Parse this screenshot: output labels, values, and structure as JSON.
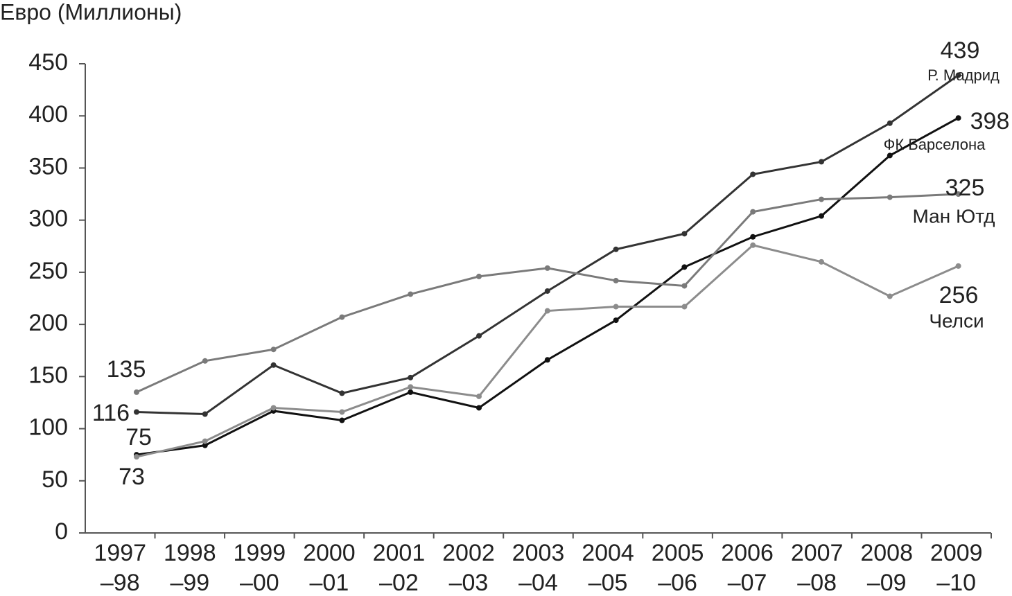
{
  "chart_data": {
    "type": "line",
    "y_label": "Евро (Миллионы)",
    "categories": [
      [
        "1997",
        "–98"
      ],
      [
        "1998",
        "–99"
      ],
      [
        "1999",
        "–00"
      ],
      [
        "2000",
        "–01"
      ],
      [
        "2001",
        "–02"
      ],
      [
        "2002",
        "–03"
      ],
      [
        "2003",
        "–04"
      ],
      [
        "2004",
        "–05"
      ],
      [
        "2005",
        "–06"
      ],
      [
        "2006",
        "–07"
      ],
      [
        "2007",
        "–08"
      ],
      [
        "2008",
        "–09"
      ],
      [
        "2009",
        "–10"
      ]
    ],
    "series": [
      {
        "name": "Р. Мадрид",
        "color": "#333333",
        "values": [
          116,
          114,
          161,
          134,
          149,
          189,
          232,
          272,
          287,
          344,
          356,
          393,
          439
        ]
      },
      {
        "name": "ФК Барселона",
        "color": "#111111",
        "values": [
          75,
          84,
          117,
          108,
          135,
          120,
          166,
          204,
          255,
          284,
          304,
          362,
          398
        ]
      },
      {
        "name": "Ман Ютд",
        "color": "#7a7a7a",
        "values": [
          135,
          165,
          176,
          207,
          229,
          246,
          254,
          242,
          237,
          308,
          320,
          322,
          325
        ]
      },
      {
        "name": "Челси",
        "color": "#8c8c8c",
        "values": [
          73,
          88,
          120,
          116,
          140,
          131,
          213,
          217,
          217,
          276,
          260,
          227,
          256
        ]
      }
    ],
    "ylim": [
      0,
      450
    ],
    "yticks": [
      0,
      50,
      100,
      150,
      200,
      250,
      300,
      350,
      400,
      450
    ]
  }
}
